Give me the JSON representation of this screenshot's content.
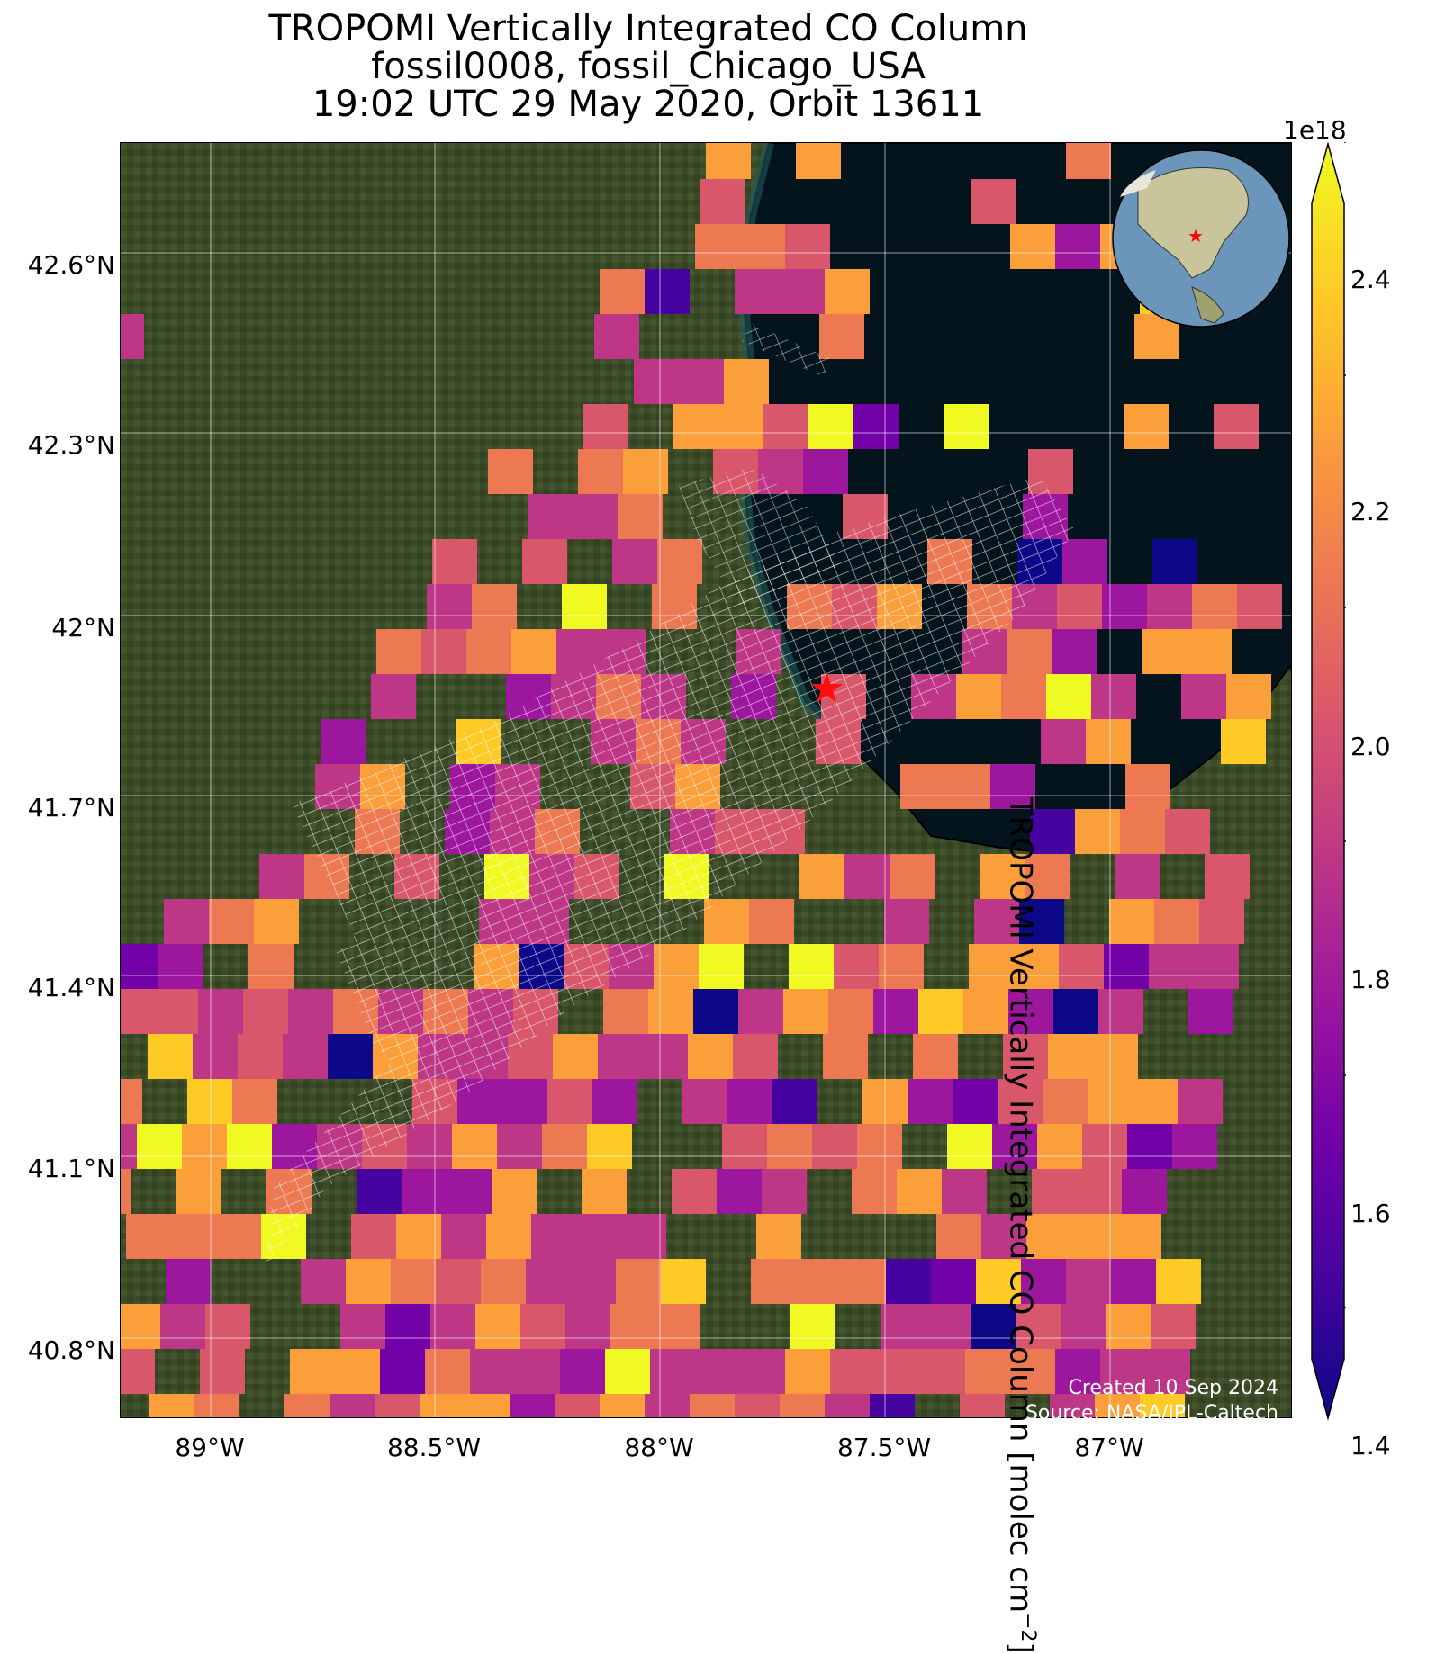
{
  "title": {
    "line1": "TROPOMI Vertically Integrated CO Column",
    "line2": "fossil0008, fossil_Chicago_USA",
    "line3": "19:02 UTC 29 May 2020, Orbit 13611"
  },
  "colorbar": {
    "label_main": "TROPOMI Vertically Integrated CO Column [molec cm",
    "label_exp": "−2",
    "label_close": "]",
    "exponent": "1e18",
    "colormap": "plasma",
    "range": [
      1.4,
      2.45
    ],
    "ticks": [
      "2.4",
      "2.2",
      "2.0",
      "1.8",
      "1.6",
      "1.4"
    ],
    "stops": [
      "#0d0887",
      "#46039f",
      "#7201a8",
      "#9c179e",
      "#bd3786",
      "#d8576b",
      "#ed7953",
      "#fb9f3a",
      "#fdca26",
      "#f0f921"
    ]
  },
  "axes": {
    "lat_ticks": [
      "42.6°N",
      "42.3°N",
      "42°N",
      "41.7°N",
      "41.4°N",
      "41.1°N",
      "40.8°N"
    ],
    "lon_ticks": [
      "89°W",
      "88.5°W",
      "88°W",
      "87.5°W",
      "87°W"
    ]
  },
  "map": {
    "center_marker": "red-star",
    "site_lat": 41.88,
    "site_lon": -87.63,
    "land_color": "#3a4a26",
    "water_color": "#03141c"
  },
  "footer": {
    "created": "Created 10 Sep 2024",
    "source": "Source: NASA/JPL-Caltech"
  }
}
